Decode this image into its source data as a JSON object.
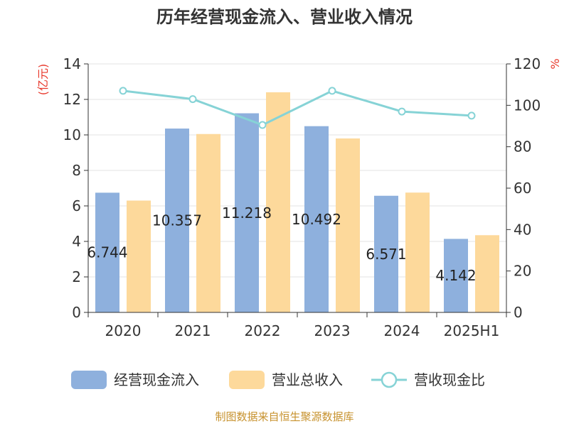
{
  "chart_data": {
    "type": "bar",
    "title": "历年经营现金流入、营业收入情况",
    "categories": [
      "2020",
      "2021",
      "2022",
      "2023",
      "2024",
      "2025H1"
    ],
    "series": [
      {
        "name": "经营现金流入",
        "axis": "left",
        "kind": "bar",
        "color": "#8eb0dd",
        "values": [
          6.744,
          10.357,
          11.218,
          10.492,
          6.571,
          4.142
        ],
        "labels": [
          "6.744",
          "10.357",
          "11.218",
          "10.492",
          "6.571",
          "4.142"
        ]
      },
      {
        "name": "营业总收入",
        "axis": "left",
        "kind": "bar",
        "color": "#fdd99b",
        "values": [
          6.3,
          10.05,
          12.4,
          9.8,
          6.75,
          4.35
        ]
      },
      {
        "name": "营收现金比",
        "axis": "right",
        "kind": "line",
        "color": "#86d3d6",
        "values": [
          107,
          103,
          90.5,
          107,
          97,
          95
        ]
      }
    ],
    "yleft": {
      "label": "(亿元)",
      "ylim": [
        0,
        14
      ],
      "ticks": [
        "0",
        "2",
        "4",
        "6",
        "8",
        "10",
        "12",
        "14"
      ]
    },
    "yright": {
      "label": "%",
      "ylim": [
        0,
        120
      ],
      "ticks": [
        "0",
        "20",
        "40",
        "60",
        "80",
        "100",
        "120"
      ]
    },
    "legend_position": "bottom",
    "grid": true
  },
  "source": "制图数据来自恒生聚源数据库"
}
